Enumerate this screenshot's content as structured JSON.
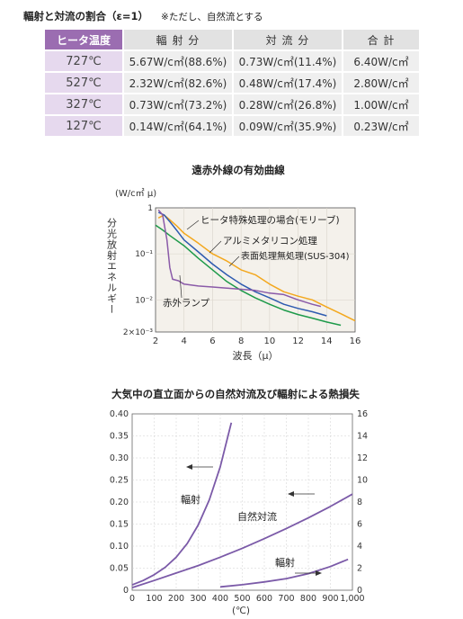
{
  "table": {
    "caption": "輻射と対流の割合（ε=1）",
    "note": "※ただし、自然流とする",
    "headers": [
      "ヒータ温度",
      "輻 射 分",
      "対 流 分",
      "合 計"
    ],
    "rows": [
      [
        "727℃",
        "5.67W/c㎡(88.6%)",
        "0.73W/c㎡(11.4%)",
        "6.40W/c㎡"
      ],
      [
        "527℃",
        "2.32W/c㎡(82.6%)",
        "0.48W/c㎡(17.4%)",
        "2.80W/c㎡"
      ],
      [
        "327℃",
        "0.73W/c㎡(73.2%)",
        "0.28W/c㎡(26.8%)",
        "1.00W/c㎡"
      ],
      [
        "127℃",
        "0.14W/c㎡(64.1%)",
        "0.09W/c㎡(35.9%)",
        "0.23W/c㎡"
      ]
    ]
  },
  "chart_data": [
    {
      "type": "line",
      "title": "遠赤外線の有効曲線",
      "unit_label": "(W/c㎡ μ)",
      "ylabel": "分光放射エネルギー",
      "xlabel": "波長（μ）",
      "xlim": [
        2,
        16
      ],
      "ylim": [
        0.002,
        1
      ],
      "yscale": "log",
      "xticks": [
        2,
        4,
        6,
        8,
        10,
        12,
        14,
        16
      ],
      "yticks": [
        {
          "v": 1,
          "label": "1"
        },
        {
          "v": 0.1,
          "label": "10⁻¹"
        },
        {
          "v": 0.01,
          "label": "10⁻²"
        },
        {
          "v": 0.002,
          "label": "2×10⁻³"
        }
      ],
      "series": [
        {
          "name": "ヒータ特殊処理の場合(モリーブ)",
          "color": "#f3a81e",
          "x": [
            2.2,
            2.6,
            3,
            3.5,
            4,
            5,
            6,
            7,
            8,
            9,
            10,
            11,
            12,
            13,
            14,
            15,
            16
          ],
          "y": [
            0.6,
            0.7,
            0.55,
            0.4,
            0.28,
            0.17,
            0.1,
            0.07,
            0.045,
            0.035,
            0.022,
            0.015,
            0.012,
            0.01,
            0.007,
            0.005,
            0.0035
          ]
        },
        {
          "name": "アルミメタリコン処理",
          "color": "#2e5bb0",
          "x": [
            2.2,
            2.6,
            3,
            3.5,
            4,
            5,
            6,
            7,
            8,
            9,
            10,
            11,
            12,
            13,
            14
          ],
          "y": [
            0.8,
            0.7,
            0.5,
            0.32,
            0.2,
            0.11,
            0.06,
            0.035,
            0.022,
            0.015,
            0.011,
            0.008,
            0.0065,
            0.0055,
            0.0045
          ]
        },
        {
          "name": "表面処理無処理(SUS-304)",
          "color": "#1e9a4a",
          "x": [
            2,
            2.5,
            3,
            4,
            5,
            6,
            7,
            8,
            9,
            10,
            11,
            12,
            13,
            14,
            15
          ],
          "y": [
            0.42,
            0.33,
            0.25,
            0.15,
            0.08,
            0.045,
            0.025,
            0.016,
            0.011,
            0.008,
            0.006,
            0.0048,
            0.004,
            0.0033,
            0.0028
          ]
        },
        {
          "name": "赤外ランプ",
          "color": "#8a5aa8",
          "x": [
            2.2,
            2.5,
            2.8,
            3,
            3.2,
            3.6,
            4,
            5,
            6,
            7,
            8,
            9,
            10,
            11,
            12,
            13,
            13.6
          ],
          "y": [
            0.9,
            0.7,
            0.2,
            0.05,
            0.028,
            0.026,
            0.022,
            0.02,
            0.019,
            0.018,
            0.017,
            0.016,
            0.014,
            0.013,
            0.01,
            0.008,
            0.0072
          ]
        }
      ]
    },
    {
      "type": "line",
      "title": "大気中の直立面からの自然対流及び輻射による熱損失",
      "xlabel": "(℃)",
      "xlim": [
        0,
        1000
      ],
      "xticks": [
        0,
        100,
        200,
        300,
        400,
        500,
        600,
        700,
        800,
        900,
        1000
      ],
      "xticklabels": [
        "0",
        "100",
        "200",
        "300",
        "400",
        "500",
        "600",
        "700",
        "800",
        "900",
        "1,000"
      ],
      "ylim_left": [
        0,
        0.4
      ],
      "yticks_left": [
        "0",
        "0.05",
        "0.10",
        "0.15",
        "0.20",
        "0.25",
        "0.30",
        "0.35",
        "0.40"
      ],
      "ylim_right": [
        0,
        16
      ],
      "yticks_right": [
        "0",
        "2",
        "4",
        "6",
        "8",
        "10",
        "12",
        "14",
        "16"
      ],
      "series": [
        {
          "name": "輻射",
          "axis": "left",
          "color": "#7b5aa8",
          "x": [
            0,
            50,
            100,
            150,
            200,
            250,
            300,
            350,
            400,
            450
          ],
          "y": [
            0.012,
            0.022,
            0.035,
            0.052,
            0.075,
            0.106,
            0.148,
            0.205,
            0.28,
            0.38
          ]
        },
        {
          "name": "自然対流",
          "axis": "left",
          "color": "#7b5aa8",
          "x": [
            0,
            100,
            200,
            300,
            400,
            500,
            600,
            700,
            800,
            900,
            1000
          ],
          "y": [
            0.006,
            0.022,
            0.039,
            0.056,
            0.075,
            0.095,
            0.117,
            0.14,
            0.164,
            0.19,
            0.218
          ]
        },
        {
          "name": "輻射",
          "axis": "right",
          "color": "#7b5aa8",
          "x": [
            400,
            500,
            600,
            700,
            800,
            900,
            980
          ],
          "y": [
            0.3,
            0.5,
            0.75,
            1.05,
            1.5,
            2.15,
            2.8
          ]
        }
      ]
    }
  ]
}
